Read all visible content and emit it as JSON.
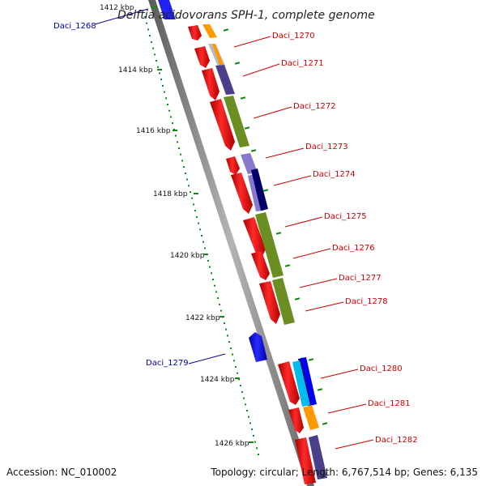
{
  "title": "Delftia acidovorans SPH-1, complete genome",
  "accession": "Accession: NC_010002",
  "summary": "Topology: circular; Length: 6,767,514 bp; Genes: 6,135",
  "kbp_labels": [
    "1412 kbp",
    "1414 kbp",
    "1416 kbp",
    "1418 kbp",
    "1420 kbp",
    "1422 kbp",
    "1424 kbp",
    "1426 kbp"
  ],
  "gene_labels": [
    "Daci_1268",
    "Daci_1270",
    "Daci_1271",
    "Daci_1272",
    "Daci_1273",
    "Daci_1274",
    "Daci_1275",
    "Daci_1276",
    "Daci_1277",
    "Daci_1278",
    "Daci_1279",
    "Daci_1280",
    "Daci_1281",
    "Daci_1282"
  ],
  "colors": {
    "forward_gene": "#ee0000",
    "reverse_gene": "#0000ee",
    "backbone": "#888888",
    "tick": "#118811",
    "label_forward": "#cc0000",
    "label_reverse": "#000099",
    "cog_orange": "#ff9900",
    "cog_olive": "#6b8e23",
    "cog_purple": "#4b3f8a",
    "cog_lavender": "#8878cc",
    "cog_navy": "#000066",
    "cog_cyan": "#00bbee",
    "cog_grey": "#bbbbbb"
  }
}
